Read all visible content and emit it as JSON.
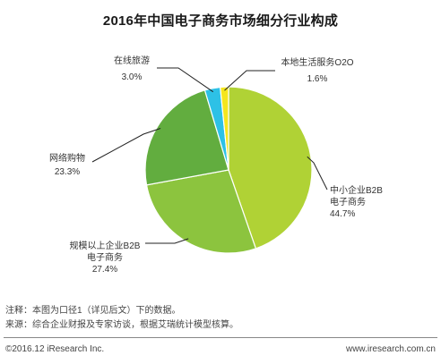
{
  "chart_data": {
    "type": "pie",
    "title": "2016年中国电子商务市场细分行业构成",
    "slices": [
      {
        "name_lines": [
          "中小企业B2B",
          "电子商务"
        ],
        "value": 44.7,
        "value_label": "44.7%",
        "color": "#b0d235"
      },
      {
        "name_lines": [
          "规模以上企业B2B",
          "电子商务"
        ],
        "value": 27.4,
        "value_label": "27.4%",
        "color": "#8cc43e"
      },
      {
        "name_lines": [
          "网络购物"
        ],
        "value": 23.3,
        "value_label": "23.3%",
        "color": "#62ad3f"
      },
      {
        "name_lines": [
          "在线旅游"
        ],
        "value": 3.0,
        "value_label": "3.0%",
        "color": "#2dc1e6"
      },
      {
        "name_lines": [
          "本地生活服务O2O"
        ],
        "value": 1.6,
        "value_label": "1.6%",
        "color": "#f5e61e"
      }
    ]
  },
  "notes": {
    "note": "注释：本图为口径1（详见后文）下的数据。",
    "source": "来源：综合企业财报及专家访谈，根据艾瑞统计模型核算。"
  },
  "footer": {
    "copyright": "©2016.12 iResearch Inc.",
    "website": "www.iresearch.com.cn"
  }
}
